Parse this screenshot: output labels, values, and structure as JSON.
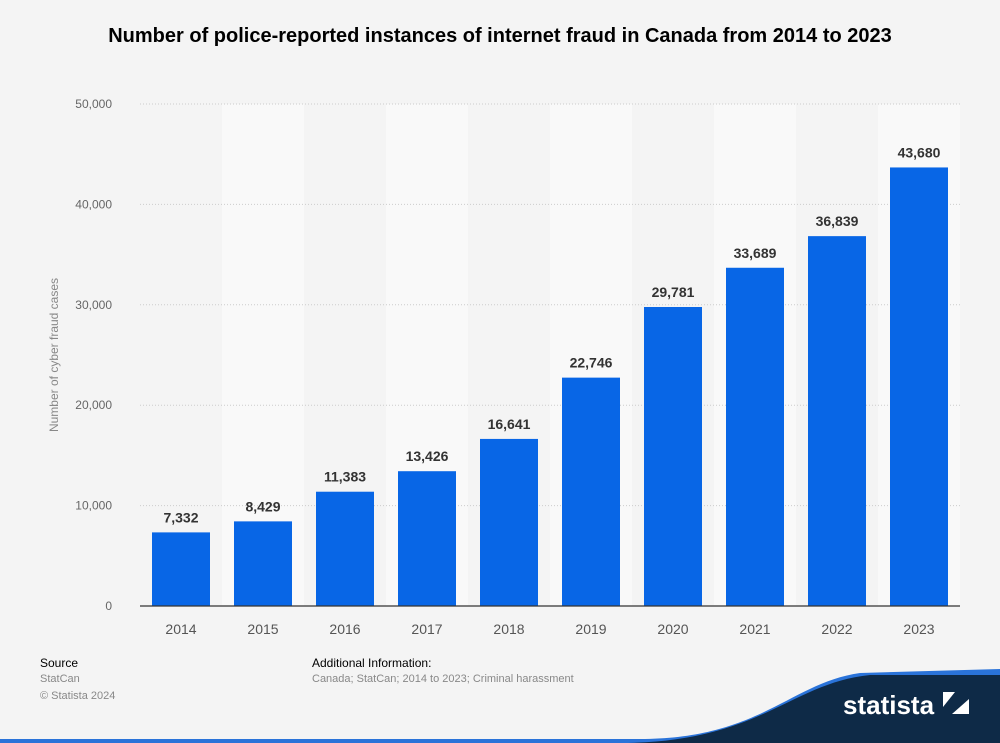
{
  "chart_data": {
    "type": "bar",
    "title": "Number of police-reported instances of internet fraud in Canada from 2014 to 2023",
    "ylabel": "Number of cyber fraud cases",
    "xlabel": "",
    "categories": [
      "2014",
      "2015",
      "2016",
      "2017",
      "2018",
      "2019",
      "2020",
      "2021",
      "2022",
      "2023"
    ],
    "values": [
      7332,
      8429,
      11383,
      13426,
      16641,
      22746,
      29781,
      33689,
      36839,
      43680
    ],
    "data_labels": [
      "7,332",
      "8,429",
      "11,383",
      "13,426",
      "16,641",
      "22,746",
      "29,781",
      "33,689",
      "36,839",
      "43,680"
    ],
    "ylim": [
      0,
      50000
    ],
    "yticks": [
      "0",
      "10,000",
      "20,000",
      "30,000",
      "40,000",
      "50,000"
    ],
    "grid": true,
    "bar_color": "#0866e6"
  },
  "footer": {
    "source_heading": "Source",
    "source_value": "StatCan",
    "copyright": "© Statista 2024",
    "additional_heading": "Additional Information:",
    "additional_value": "Canada; StatCan; 2014 to 2023; Criminal harassment",
    "logo_text": "statista"
  }
}
